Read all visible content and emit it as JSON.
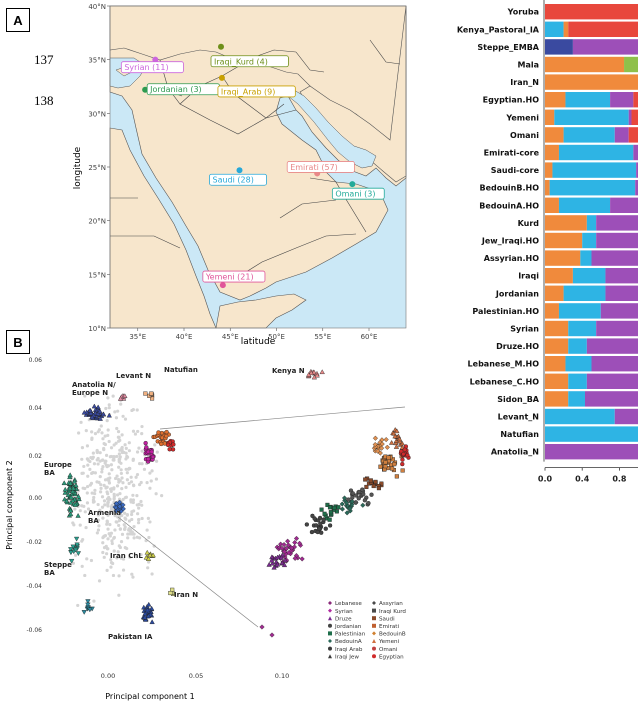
{
  "panels": {
    "a": "A",
    "b": "B"
  },
  "side_numbers": [
    "137",
    "138"
  ],
  "map": {
    "background": "#f7e6cc",
    "sea": "#cbe8f6",
    "y_axis_label": "longitude",
    "x_axis_label": "latitude",
    "y_ticks": [
      "40°N",
      "35°N",
      "30°N",
      "25°N",
      "20°N",
      "15°N",
      "10°N"
    ],
    "x_ticks": [
      "35°E",
      "40°E",
      "45°E",
      "50°E",
      "55°E",
      "60°E"
    ],
    "points": [
      {
        "label": "Syrian (11)",
        "color": "#cc66dd",
        "lon": 36.9,
        "lat": 35.0
      },
      {
        "label": "Iraqi_Kurd (4)",
        "color": "#6e8f1a",
        "lon": 44.0,
        "lat": 36.2
      },
      {
        "label": "Jordanian (3)",
        "color": "#2e9a50",
        "lon": 35.8,
        "lat": 32.2
      },
      {
        "label": "Iraqi_Arab (9)",
        "color": "#c8a000",
        "lon": 44.1,
        "lat": 33.3
      },
      {
        "label": "Saudi (28)",
        "color": "#27a8d8",
        "lon": 46.0,
        "lat": 24.7
      },
      {
        "label": "Emirati (57)",
        "color": "#e88888",
        "lon": 54.4,
        "lat": 24.4
      },
      {
        "label": "Omani (3)",
        "color": "#22aa99",
        "lon": 58.2,
        "lat": 23.4
      },
      {
        "label": "Yemeni (21)",
        "color": "#e0559a",
        "lon": 44.2,
        "lat": 14.0
      }
    ]
  },
  "admixture": {
    "colors": {
      "red": "#e8473c",
      "blue": "#2eb4e4",
      "purple": "#9d4fb8",
      "orange": "#f08a3c",
      "green": "#8fc04a",
      "darkblue": "#3a4aa0"
    },
    "x_ticks": [
      "0.0",
      "0.4",
      "0.8"
    ],
    "rows": [
      {
        "label": "Yoruba",
        "segments": [
          [
            "red",
            1.0
          ]
        ]
      },
      {
        "label": "Kenya_Pastoral_IA",
        "segments": [
          [
            "blue",
            0.2
          ],
          [
            "orange",
            0.05
          ],
          [
            "red",
            0.75
          ]
        ]
      },
      {
        "label": "Steppe_EMBA",
        "segments": [
          [
            "darkblue",
            0.3
          ],
          [
            "purple",
            0.7
          ]
        ]
      },
      {
        "label": "Mala",
        "segments": [
          [
            "orange",
            0.85
          ],
          [
            "green",
            0.15
          ]
        ]
      },
      {
        "label": "Iran_N",
        "segments": [
          [
            "orange",
            1.0
          ]
        ]
      },
      {
        "label": "Egyptian.HO",
        "segments": [
          [
            "orange",
            0.22
          ],
          [
            "blue",
            0.48
          ],
          [
            "purple",
            0.25
          ],
          [
            "red",
            0.05
          ]
        ]
      },
      {
        "label": "Yemeni",
        "segments": [
          [
            "orange",
            0.1
          ],
          [
            "blue",
            0.8
          ],
          [
            "purple",
            0.03
          ],
          [
            "red",
            0.07
          ]
        ]
      },
      {
        "label": "Omani",
        "segments": [
          [
            "orange",
            0.2
          ],
          [
            "blue",
            0.55
          ],
          [
            "purple",
            0.15
          ],
          [
            "red",
            0.1
          ]
        ]
      },
      {
        "label": "Emirati-core",
        "segments": [
          [
            "orange",
            0.15
          ],
          [
            "blue",
            0.8
          ],
          [
            "purple",
            0.05
          ]
        ]
      },
      {
        "label": "Saudi-core",
        "segments": [
          [
            "orange",
            0.08
          ],
          [
            "blue",
            0.9
          ],
          [
            "purple",
            0.02
          ]
        ]
      },
      {
        "label": "BedouinB.HO",
        "segments": [
          [
            "orange",
            0.05
          ],
          [
            "blue",
            0.92
          ],
          [
            "purple",
            0.03
          ]
        ]
      },
      {
        "label": "BedouinA.HO",
        "segments": [
          [
            "orange",
            0.15
          ],
          [
            "blue",
            0.55
          ],
          [
            "purple",
            0.3
          ]
        ]
      },
      {
        "label": "Kurd",
        "segments": [
          [
            "orange",
            0.45
          ],
          [
            "blue",
            0.1
          ],
          [
            "purple",
            0.45
          ]
        ]
      },
      {
        "label": "Jew_Iraqi.HO",
        "segments": [
          [
            "orange",
            0.4
          ],
          [
            "blue",
            0.15
          ],
          [
            "purple",
            0.45
          ]
        ]
      },
      {
        "label": "Assyrian.HO",
        "segments": [
          [
            "orange",
            0.38
          ],
          [
            "blue",
            0.12
          ],
          [
            "purple",
            0.5
          ]
        ]
      },
      {
        "label": "Iraqi",
        "segments": [
          [
            "orange",
            0.3
          ],
          [
            "blue",
            0.35
          ],
          [
            "purple",
            0.35
          ]
        ]
      },
      {
        "label": "Jordanian",
        "segments": [
          [
            "orange",
            0.2
          ],
          [
            "blue",
            0.45
          ],
          [
            "purple",
            0.35
          ]
        ]
      },
      {
        "label": "Palestinian.HO",
        "segments": [
          [
            "orange",
            0.15
          ],
          [
            "blue",
            0.45
          ],
          [
            "purple",
            0.4
          ]
        ]
      },
      {
        "label": "Syrian",
        "segments": [
          [
            "orange",
            0.25
          ],
          [
            "blue",
            0.3
          ],
          [
            "purple",
            0.45
          ]
        ]
      },
      {
        "label": "Druze.HO",
        "segments": [
          [
            "orange",
            0.25
          ],
          [
            "blue",
            0.2
          ],
          [
            "purple",
            0.55
          ]
        ]
      },
      {
        "label": "Lebanese_M.HO",
        "segments": [
          [
            "orange",
            0.22
          ],
          [
            "blue",
            0.28
          ],
          [
            "purple",
            0.5
          ]
        ]
      },
      {
        "label": "Lebanese_C.HO",
        "segments": [
          [
            "orange",
            0.25
          ],
          [
            "blue",
            0.2
          ],
          [
            "purple",
            0.55
          ]
        ]
      },
      {
        "label": "Sidon_BA",
        "segments": [
          [
            "orange",
            0.25
          ],
          [
            "blue",
            0.18
          ],
          [
            "purple",
            0.57
          ]
        ]
      },
      {
        "label": "Levant_N",
        "segments": [
          [
            "blue",
            0.75
          ],
          [
            "purple",
            0.25
          ]
        ]
      },
      {
        "label": "Natufian",
        "segments": [
          [
            "blue",
            1.0
          ]
        ]
      },
      {
        "label": "Anatolia_N",
        "segments": [
          [
            "purple",
            1.0
          ]
        ]
      }
    ]
  },
  "pca": {
    "x_axis_label": "Principal component 1",
    "y_axis_label": "Principal component 2",
    "x_ticks": [
      "0.00",
      "0.05",
      "0.10"
    ],
    "y_ticks": [
      "0.06",
      "0.04",
      "0.02",
      "0.00",
      "-0.02",
      "-0.04",
      "-0.06"
    ],
    "ancient_labels": [
      "Anatolia N/\nEurope N",
      "Levant N",
      "Natufian",
      "Kenya N",
      "Europe\nBA",
      "Armenia\nBA",
      "Iran ChL",
      "Steppe\nBA",
      "Iran N",
      "Pakistan IA"
    ],
    "legend": [
      {
        "name": "Lebanese",
        "color": "#8a2a7a",
        "shape": "diamond"
      },
      {
        "name": "Syrian",
        "color": "#b02aa0",
        "shape": "diamond"
      },
      {
        "name": "Druze",
        "color": "#7a2a90",
        "shape": "triangle"
      },
      {
        "name": "Jordanian",
        "color": "#444444",
        "shape": "circle"
      },
      {
        "name": "Palestinian",
        "color": "#1e6e4a",
        "shape": "square"
      },
      {
        "name": "BedouinA",
        "color": "#2a6a5a",
        "shape": "diamond"
      },
      {
        "name": "Iraqi Arab",
        "color": "#3a3a3a",
        "shape": "circle"
      },
      {
        "name": "Iraqi Jew",
        "color": "#3a3a3a",
        "shape": "triangle"
      },
      {
        "name": "Assyrian",
        "color": "#4a4a4a",
        "shape": "diamond"
      },
      {
        "name": "Iraqi Kurd",
        "color": "#4a4a4a",
        "shape": "square"
      },
      {
        "name": "Saudi",
        "color": "#8a4a2a",
        "shape": "square"
      },
      {
        "name": "Emirati",
        "color": "#c06030",
        "shape": "square"
      },
      {
        "name": "BedouinB",
        "color": "#d08030",
        "shape": "diamond"
      },
      {
        "name": "Yemeni",
        "color": "#d07040",
        "shape": "triangle"
      },
      {
        "name": "Omani",
        "color": "#c04040",
        "shape": "circle"
      },
      {
        "name": "Egyptian",
        "color": "#d02a2a",
        "shape": "circle"
      }
    ]
  }
}
